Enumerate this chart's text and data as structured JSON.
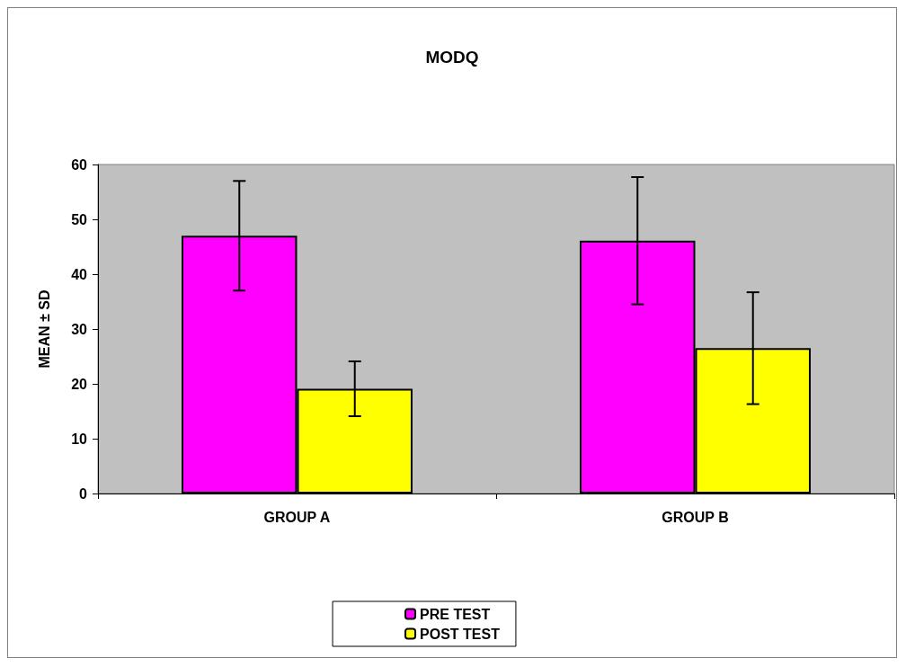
{
  "chart_data": {
    "type": "bar",
    "title": "MODQ",
    "ylabel": "MEAN ± SD",
    "categories": [
      "GROUP A",
      "GROUP B"
    ],
    "series": [
      {
        "name": "PRE TEST",
        "color": "#ff00ff",
        "values": [
          47,
          46.1
        ],
        "errors": [
          10,
          11.6
        ]
      },
      {
        "name": "POST TEST",
        "color": "#ffff00",
        "values": [
          19.1,
          26.5
        ],
        "errors": [
          5,
          10.2
        ]
      }
    ],
    "ylim": [
      0,
      60
    ],
    "yticks": [
      0,
      10,
      20,
      30,
      40,
      50,
      60
    ],
    "legend": "bottom"
  }
}
